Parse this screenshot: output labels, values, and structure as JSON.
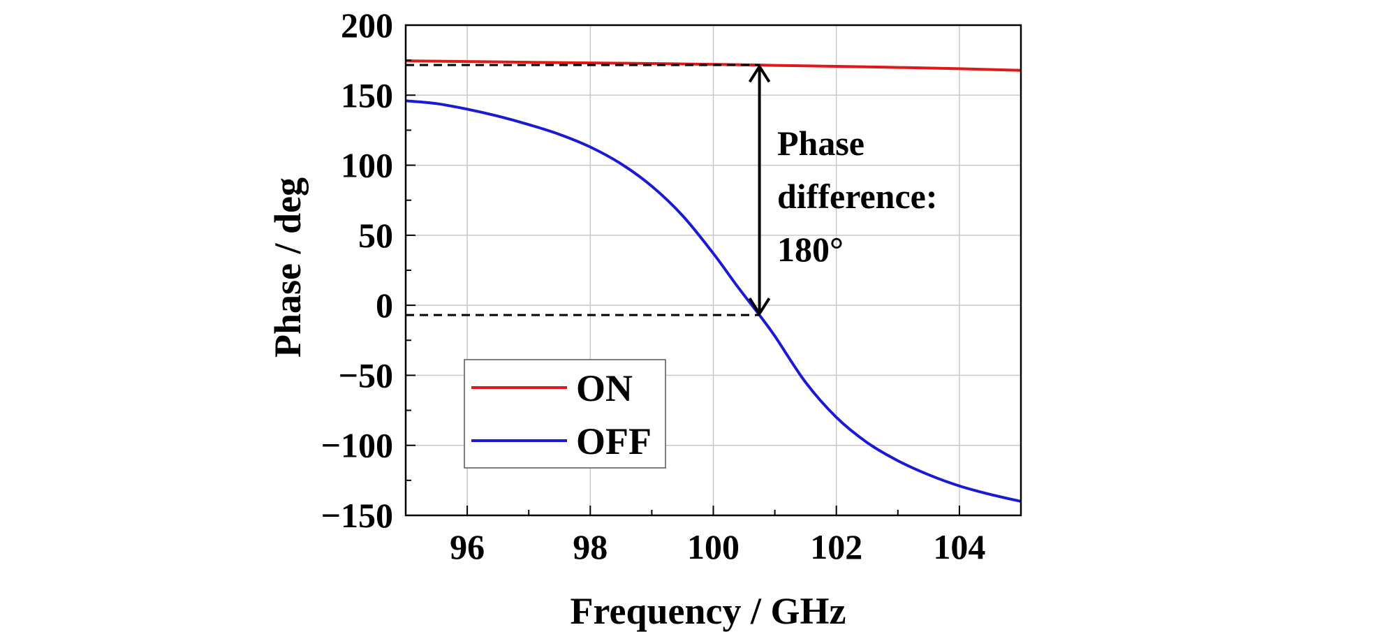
{
  "chart_data": {
    "type": "line",
    "xlabel": "Frequency / GHz",
    "ylabel": "Phase / deg",
    "xlim": [
      95,
      105
    ],
    "ylim": [
      -150,
      200
    ],
    "x_ticks": [
      96,
      98,
      100,
      102,
      104
    ],
    "y_ticks": [
      -150,
      -100,
      -50,
      0,
      50,
      100,
      150,
      200
    ],
    "x_tick_labels": [
      "96",
      "98",
      "100",
      "102",
      "104"
    ],
    "y_tick_labels": [
      "−150",
      "−100",
      "−50",
      "0",
      "50",
      "100",
      "150",
      "200"
    ],
    "grid": true,
    "legend_position": "lower-left",
    "series": [
      {
        "name": "ON",
        "color": "#e01818",
        "x": [
          95,
          96,
          97,
          98,
          99,
          100,
          100.75,
          101,
          102,
          103,
          104,
          105
        ],
        "y": [
          174.5,
          174.0,
          173.5,
          173.0,
          172.6,
          172.0,
          171.5,
          171.3,
          170.6,
          169.8,
          168.9,
          167.7
        ]
      },
      {
        "name": "OFF",
        "color": "#1a1ad6",
        "x": [
          95,
          95.5,
          96,
          96.5,
          97,
          97.5,
          98,
          98.5,
          99,
          99.5,
          100,
          100.4,
          100.75,
          101,
          101.5,
          102,
          102.5,
          103,
          103.5,
          104,
          104.5,
          105
        ],
        "y": [
          146,
          144,
          140,
          135,
          129,
          122,
          113,
          101,
          85,
          64,
          37,
          13,
          -7,
          -22,
          -55,
          -80,
          -98,
          -111,
          -121,
          -129,
          -135,
          -140
        ]
      }
    ],
    "annotation": {
      "lines": [
        "Phase",
        "difference:",
        "180°"
      ],
      "arrow_x": 100.75,
      "arrow_y_top": 171.5,
      "arrow_y_bottom": -7
    }
  }
}
